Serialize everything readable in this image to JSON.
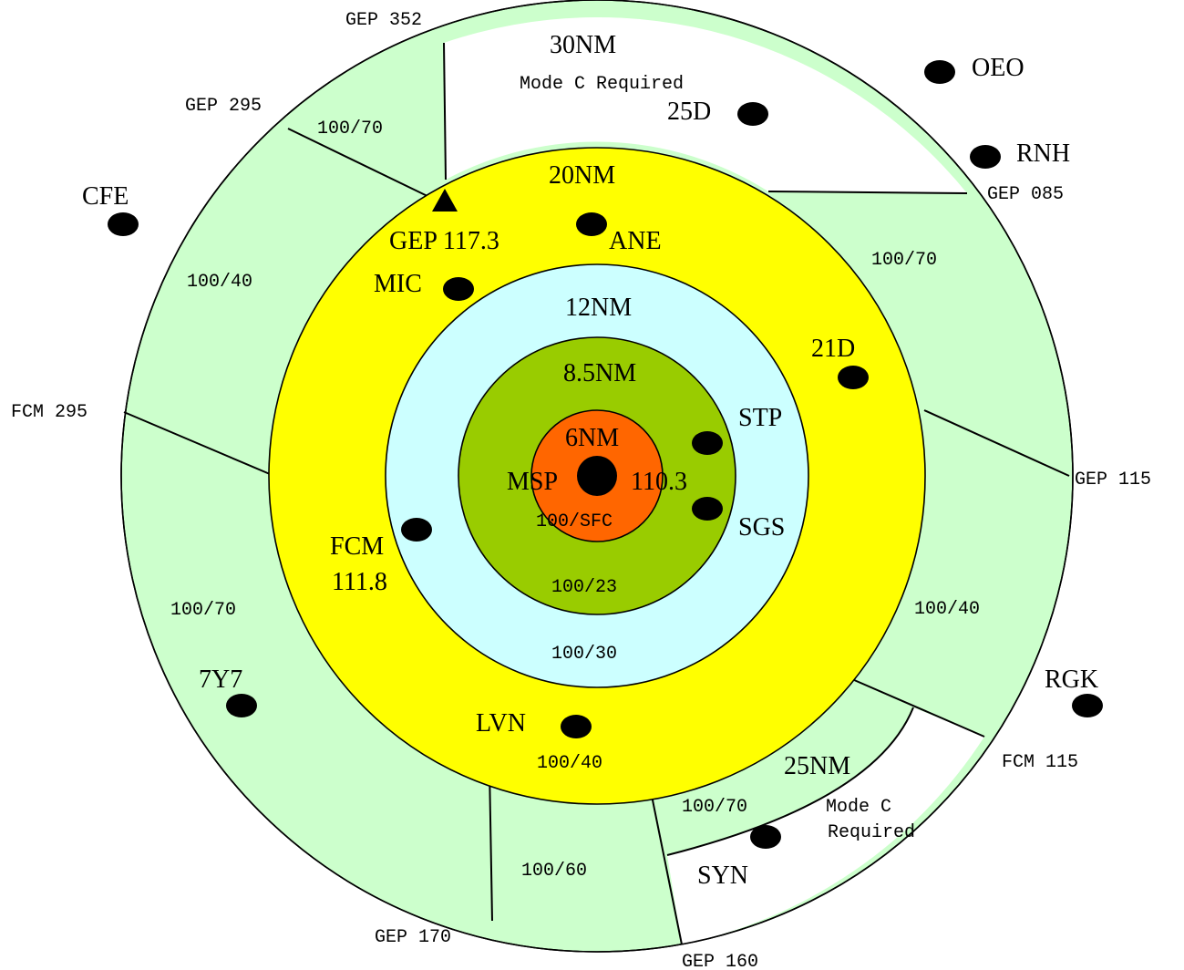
{
  "colors": {
    "outer_fill": "#ccffcc",
    "mode_c_fill": "#ffffff",
    "ring20_fill": "#ffff00",
    "ring12_fill": "#ccffff",
    "ring85_fill": "#99cc00",
    "ring6_fill": "#ff6600",
    "airport_dot": "#000000"
  },
  "ring_labels": {
    "nm30": "30NM",
    "nm25": "25NM",
    "nm20": "20NM",
    "nm12": "12NM",
    "nm85": "8.5NM",
    "nm6": "6NM"
  },
  "mode_c": {
    "north": "Mode C Required",
    "south_line1": "Mode C",
    "south_line2": "Required"
  },
  "altitudes": {
    "outer_n": "100/70",
    "outer_nw": "100/40",
    "outer_ne": "100/70",
    "outer_w": "100/70",
    "outer_e": "100/40",
    "outer_sse": "100/70",
    "outer_s": "100/60",
    "ring20": "100/40",
    "ring12": "100/30",
    "ring85": "100/23",
    "ring6": "100/SFC"
  },
  "radials": {
    "gep352": "GEP 352",
    "gep295": "GEP 295",
    "gep085": "GEP 085",
    "fcm295": "FCM 295",
    "gep115": "GEP 115",
    "fcm115": "FCM 115",
    "gep170": "GEP 170",
    "gep160": "GEP 160"
  },
  "navaids": {
    "gep": "GEP 117.3",
    "fcm_name": "FCM",
    "fcm_freq": "111.8",
    "msp": "MSP",
    "msp_freq": "110.3"
  },
  "airports": {
    "oeo": "OEO",
    "rnh": "RNH",
    "d25": "25D",
    "cfe": "CFE",
    "ane": "ANE",
    "mic": "MIC",
    "d21": "21D",
    "stp": "STP",
    "sgs": "SGS",
    "y77": "7Y7",
    "lvn": "LVN",
    "rgk": "RGK",
    "syn": "SYN"
  }
}
